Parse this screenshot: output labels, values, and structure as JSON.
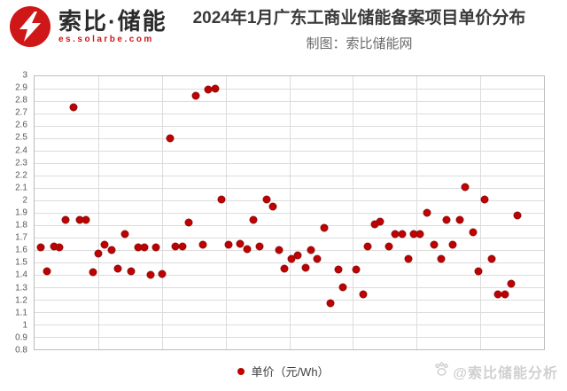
{
  "header": {
    "logo": {
      "brand": "索比·储能",
      "url": "es.solarbe.com"
    },
    "title": "2024年1月广东工商业储能备案项目单价分布",
    "subtitle": "制图：索比储能网"
  },
  "legend": {
    "label": "单价（元/Wh）"
  },
  "watermark": {
    "icon": "paw-icon",
    "text": "@索比储能分析"
  },
  "colors": {
    "dot": "#c00000",
    "logo_red": "#d01717",
    "grid": "#dcdcdc",
    "border": "#bdbdbd",
    "watermark": "#d0d0d0"
  },
  "chart_data": {
    "type": "scatter",
    "title": "2024年1月广东工商业储能备案项目单价分布",
    "ylabel": "单价（元/Wh）",
    "ylim": [
      0.8,
      3.0
    ],
    "ytick_step": 0.1,
    "yticks": [
      "3",
      "2.9",
      "2.8",
      "2.7",
      "2.6",
      "2.5",
      "2.4",
      "2.3",
      "2.2",
      "2.1",
      "2",
      "1.9",
      "1.8",
      "1.7",
      "1.6",
      "1.5",
      "1.4",
      "1.3",
      "1.2",
      "1.1",
      "1",
      "0.9",
      "0.8"
    ],
    "grid": true,
    "x_axis_labels": "none",
    "x_unit": "percent-of-plot-width",
    "legend_position": "bottom",
    "series": [
      {
        "name": "单价（元/Wh）",
        "points": [
          {
            "x": 7.6,
            "v": 2.75
          },
          {
            "x": 31.7,
            "v": 2.84
          },
          {
            "x": 34.1,
            "v": 2.89
          },
          {
            "x": 35.4,
            "v": 2.9
          },
          {
            "x": 26.6,
            "v": 2.5
          },
          {
            "x": 36.7,
            "v": 2.01
          },
          {
            "x": 45.5,
            "v": 2.01
          },
          {
            "x": 46.7,
            "v": 1.95
          },
          {
            "x": 84.6,
            "v": 2.11
          },
          {
            "x": 88.3,
            "v": 2.01
          },
          {
            "x": 77.0,
            "v": 1.9
          },
          {
            "x": 94.8,
            "v": 1.88
          },
          {
            "x": 6.1,
            "v": 1.84
          },
          {
            "x": 8.8,
            "v": 1.84
          },
          {
            "x": 10.1,
            "v": 1.84
          },
          {
            "x": 30.3,
            "v": 1.82
          },
          {
            "x": 43.0,
            "v": 1.84
          },
          {
            "x": 66.7,
            "v": 1.81
          },
          {
            "x": 67.9,
            "v": 1.83
          },
          {
            "x": 80.8,
            "v": 1.84
          },
          {
            "x": 83.4,
            "v": 1.84
          },
          {
            "x": 17.7,
            "v": 1.73
          },
          {
            "x": 56.8,
            "v": 1.78
          },
          {
            "x": 70.8,
            "v": 1.73
          },
          {
            "x": 72.2,
            "v": 1.73
          },
          {
            "x": 74.5,
            "v": 1.73
          },
          {
            "x": 75.7,
            "v": 1.73
          },
          {
            "x": 86.0,
            "v": 1.74
          },
          {
            "x": 1.2,
            "v": 1.62
          },
          {
            "x": 3.8,
            "v": 1.63
          },
          {
            "x": 4.8,
            "v": 1.62
          },
          {
            "x": 12.5,
            "v": 1.57
          },
          {
            "x": 13.7,
            "v": 1.64
          },
          {
            "x": 15.1,
            "v": 1.6
          },
          {
            "x": 20.3,
            "v": 1.62
          },
          {
            "x": 21.5,
            "v": 1.62
          },
          {
            "x": 23.9,
            "v": 1.62
          },
          {
            "x": 27.6,
            "v": 1.63
          },
          {
            "x": 29.1,
            "v": 1.63
          },
          {
            "x": 33.0,
            "v": 1.64
          },
          {
            "x": 38.0,
            "v": 1.64
          },
          {
            "x": 40.3,
            "v": 1.65
          },
          {
            "x": 41.7,
            "v": 1.61
          },
          {
            "x": 44.1,
            "v": 1.63
          },
          {
            "x": 48.0,
            "v": 1.6
          },
          {
            "x": 54.2,
            "v": 1.6
          },
          {
            "x": 65.4,
            "v": 1.63
          },
          {
            "x": 69.5,
            "v": 1.63
          },
          {
            "x": 78.5,
            "v": 1.64
          },
          {
            "x": 82.1,
            "v": 1.64
          },
          {
            "x": 50.4,
            "v": 1.53
          },
          {
            "x": 51.6,
            "v": 1.56
          },
          {
            "x": 55.5,
            "v": 1.53
          },
          {
            "x": 73.4,
            "v": 1.53
          },
          {
            "x": 79.8,
            "v": 1.53
          },
          {
            "x": 89.7,
            "v": 1.53
          },
          {
            "x": 2.5,
            "v": 1.43
          },
          {
            "x": 11.4,
            "v": 1.42
          },
          {
            "x": 16.3,
            "v": 1.45
          },
          {
            "x": 18.9,
            "v": 1.43
          },
          {
            "x": 22.7,
            "v": 1.4
          },
          {
            "x": 25.1,
            "v": 1.41
          },
          {
            "x": 49.0,
            "v": 1.45
          },
          {
            "x": 53.2,
            "v": 1.46
          },
          {
            "x": 59.6,
            "v": 1.44
          },
          {
            "x": 63.1,
            "v": 1.44
          },
          {
            "x": 87.2,
            "v": 1.43
          },
          {
            "x": 58.1,
            "v": 1.17
          },
          {
            "x": 60.5,
            "v": 1.3
          },
          {
            "x": 64.5,
            "v": 1.24
          },
          {
            "x": 90.9,
            "v": 1.24
          },
          {
            "x": 92.3,
            "v": 1.24
          },
          {
            "x": 93.5,
            "v": 1.33
          }
        ]
      }
    ]
  }
}
